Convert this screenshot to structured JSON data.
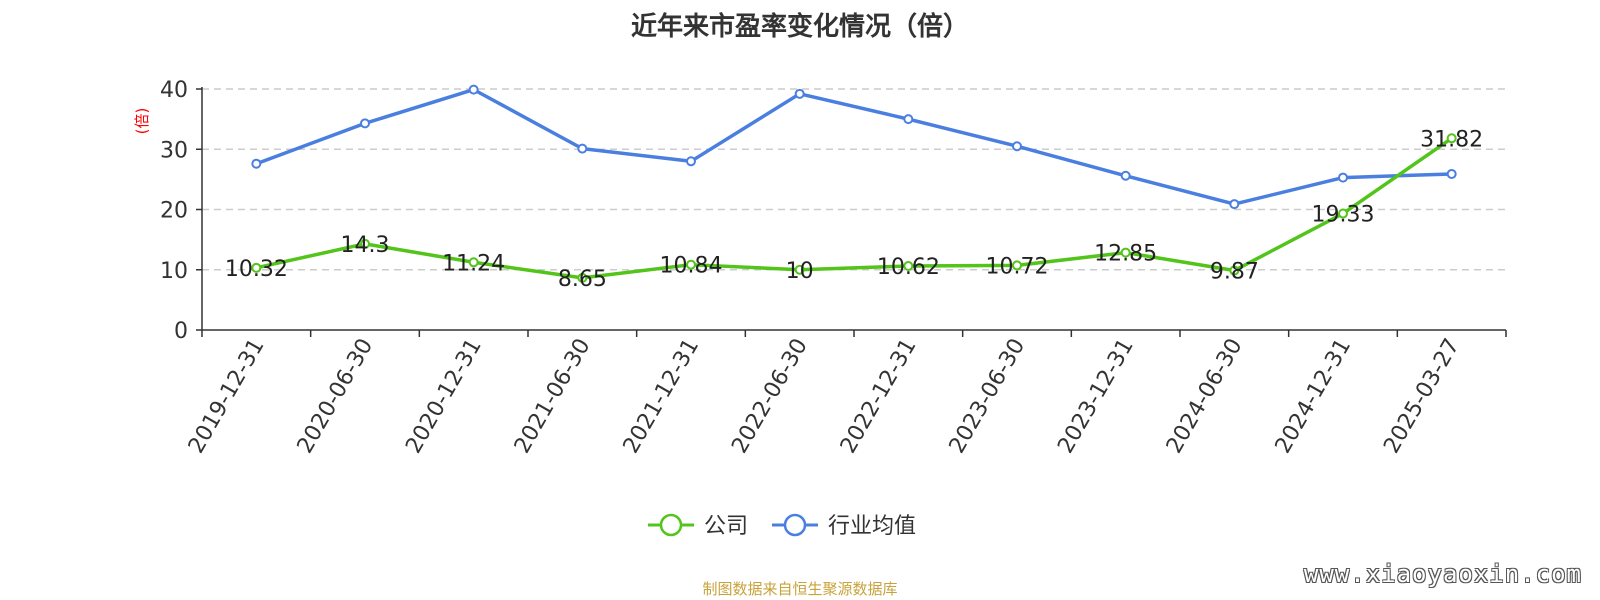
{
  "title": "近年来市盈率变化情况（倍）",
  "source": "制图数据来自恒生聚源数据库",
  "watermark": "www.xiaoyaoxin.com",
  "y_unit": "(倍)",
  "colors": {
    "company": "#52c41a",
    "industry": "#4a7fe0",
    "grid": "#cccccc",
    "axis": "#333333"
  },
  "chart_data": {
    "type": "line",
    "title": "近年来市盈率变化情况（倍）",
    "ylabel": "(倍)",
    "xlabel": "",
    "ylim": [
      0,
      40
    ],
    "yticks": [
      0,
      10,
      20,
      30,
      40
    ],
    "grid": true,
    "legend_position": "bottom-center",
    "categories": [
      "2019-12-31",
      "2020-06-30",
      "2020-12-31",
      "2021-06-30",
      "2021-12-31",
      "2022-06-30",
      "2022-12-31",
      "2023-06-30",
      "2023-12-31",
      "2024-06-30",
      "2024-12-31",
      "2025-03-27"
    ],
    "series": [
      {
        "name": "公司",
        "color": "#52c41a",
        "labels_shown": true,
        "values": [
          10.32,
          14.3,
          11.24,
          8.65,
          10.84,
          10,
          10.62,
          10.72,
          12.85,
          9.87,
          19.33,
          31.82
        ]
      },
      {
        "name": "行业均值",
        "color": "#4a7fe0",
        "labels_shown": false,
        "values": [
          27.6,
          34.3,
          39.9,
          30.1,
          28.0,
          39.2,
          35.0,
          30.5,
          25.6,
          20.9,
          25.3,
          25.9
        ]
      }
    ]
  }
}
